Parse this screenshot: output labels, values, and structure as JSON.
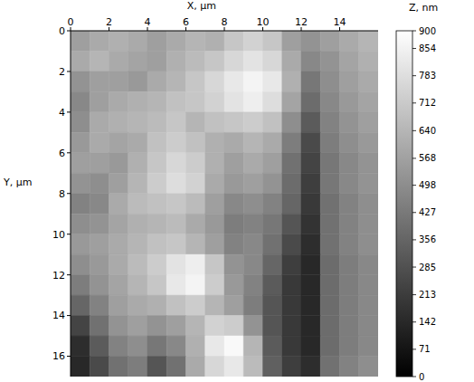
{
  "chart_data": {
    "type": "heatmap",
    "x_label": "X, μm",
    "y_label": "Y, μm",
    "xlim": [
      0,
      16
    ],
    "ylim": [
      0,
      17
    ],
    "xticks": [
      0,
      2,
      4,
      6,
      8,
      10,
      12,
      14
    ],
    "yticks": [
      0,
      2,
      4,
      6,
      8,
      10,
      12,
      14,
      16
    ],
    "grid": false,
    "cells": [
      [
        560,
        600,
        620,
        600,
        560,
        600,
        640,
        620,
        700,
        740,
        700,
        560,
        520,
        560,
        600,
        640
      ],
      [
        600,
        640,
        600,
        580,
        560,
        620,
        660,
        700,
        760,
        800,
        760,
        600,
        480,
        520,
        580,
        620
      ],
      [
        520,
        560,
        560,
        540,
        600,
        640,
        700,
        760,
        820,
        860,
        820,
        620,
        420,
        500,
        560,
        600
      ],
      [
        480,
        560,
        600,
        620,
        640,
        680,
        700,
        740,
        800,
        840,
        780,
        580,
        380,
        480,
        540,
        580
      ],
      [
        500,
        600,
        620,
        640,
        660,
        700,
        640,
        680,
        700,
        720,
        680,
        500,
        320,
        460,
        520,
        560
      ],
      [
        540,
        600,
        580,
        600,
        680,
        720,
        680,
        620,
        600,
        640,
        600,
        440,
        260,
        440,
        500,
        540
      ],
      [
        560,
        560,
        540,
        620,
        700,
        760,
        720,
        620,
        560,
        600,
        560,
        400,
        240,
        420,
        480,
        520
      ],
      [
        520,
        500,
        560,
        640,
        720,
        780,
        740,
        600,
        540,
        560,
        520,
        380,
        220,
        420,
        480,
        520
      ],
      [
        460,
        480,
        600,
        660,
        680,
        700,
        660,
        560,
        480,
        500,
        460,
        360,
        200,
        400,
        460,
        500
      ],
      [
        500,
        520,
        580,
        620,
        640,
        660,
        600,
        540,
        440,
        460,
        420,
        300,
        180,
        400,
        460,
        500
      ],
      [
        540,
        560,
        600,
        640,
        680,
        700,
        640,
        560,
        460,
        480,
        400,
        260,
        160,
        400,
        460,
        500
      ],
      [
        500,
        540,
        600,
        660,
        720,
        800,
        840,
        700,
        520,
        480,
        360,
        220,
        140,
        380,
        440,
        480
      ],
      [
        440,
        520,
        580,
        640,
        700,
        820,
        860,
        720,
        540,
        460,
        320,
        200,
        140,
        380,
        440,
        480
      ],
      [
        360,
        460,
        560,
        600,
        620,
        680,
        720,
        640,
        560,
        440,
        300,
        200,
        140,
        380,
        440,
        480
      ],
      [
        240,
        400,
        520,
        560,
        520,
        560,
        640,
        740,
        720,
        520,
        300,
        200,
        140,
        380,
        440,
        480
      ],
      [
        160,
        320,
        460,
        500,
        420,
        480,
        620,
        820,
        880,
        640,
        320,
        200,
        140,
        380,
        440,
        480
      ],
      [
        140,
        260,
        400,
        440,
        300,
        400,
        600,
        760,
        820,
        660,
        340,
        220,
        160,
        400,
        460,
        500
      ]
    ],
    "colorbar": {
      "label": "Z, nm",
      "range": [
        0,
        900
      ],
      "ticks": [
        0,
        71,
        142,
        213,
        285,
        356,
        427,
        498,
        568,
        640,
        712,
        783,
        854,
        900
      ]
    }
  }
}
